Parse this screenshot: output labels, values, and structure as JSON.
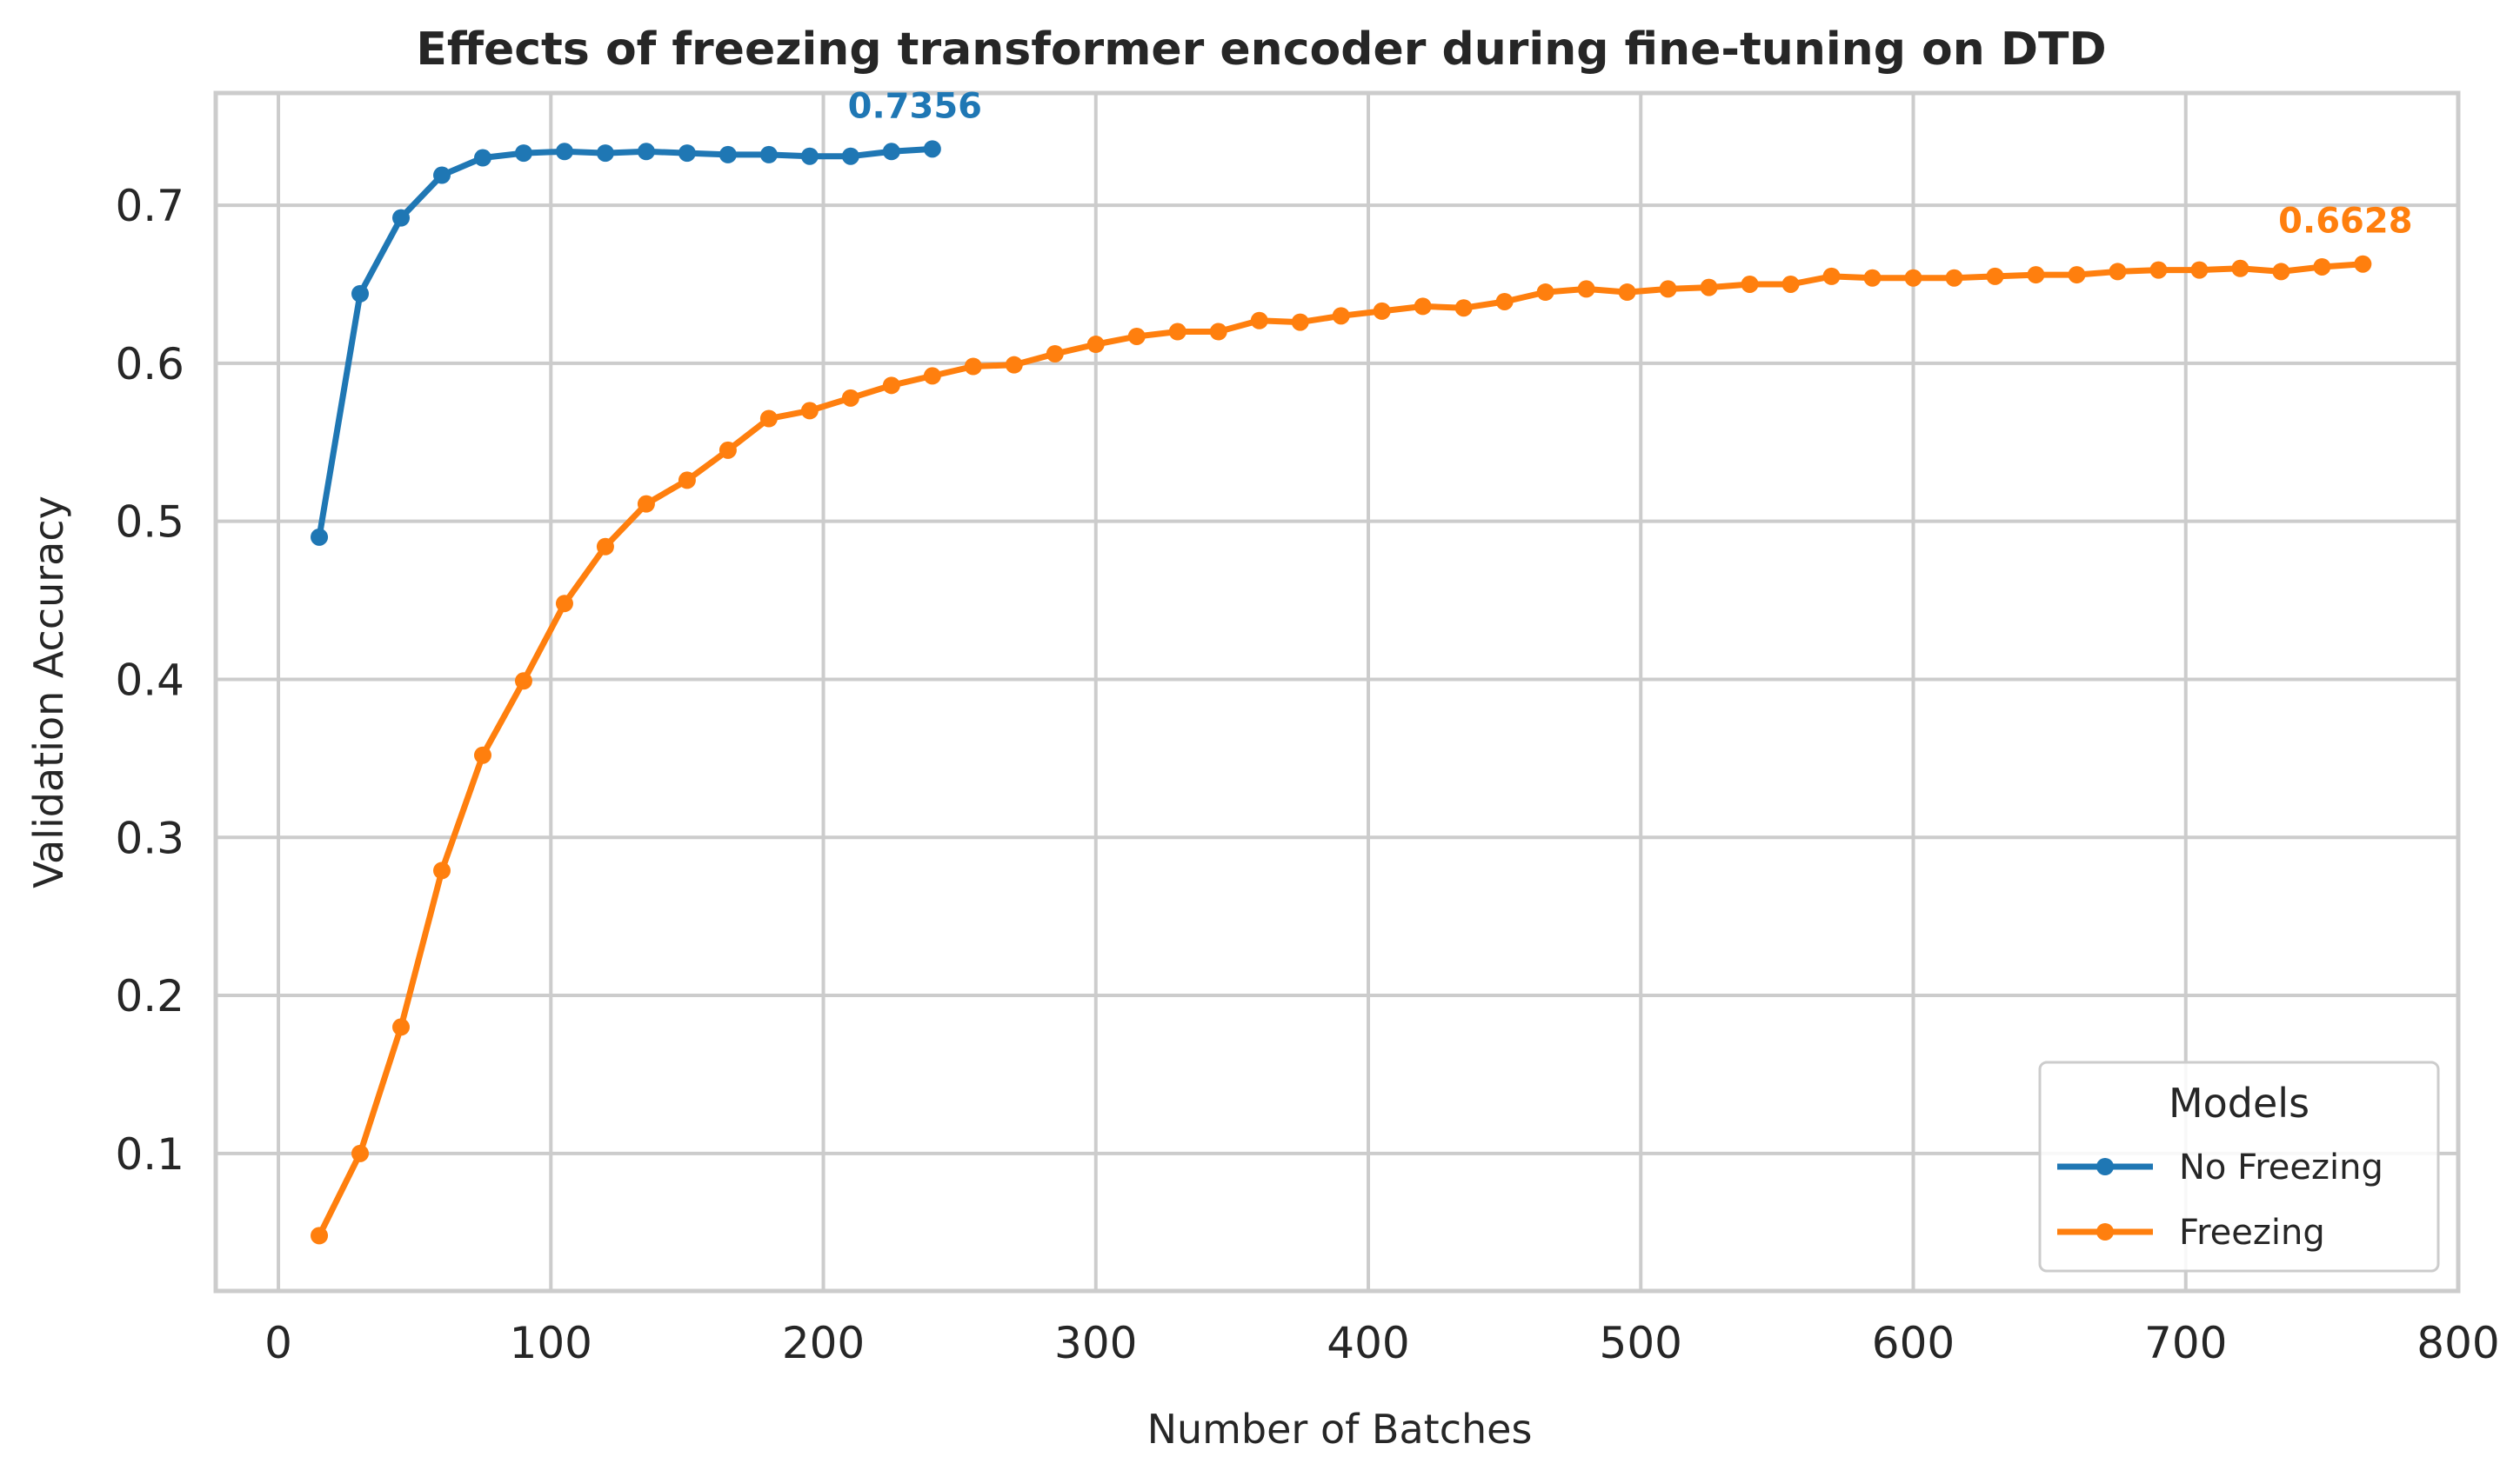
{
  "chart_data": {
    "type": "line",
    "title": "Effects of freezing transformer encoder during fine-tuning on DTD",
    "xlabel": "Number of Batches",
    "ylabel": "Validation Accuracy",
    "xlim": [
      -23,
      800
    ],
    "ylim": [
      0.013,
      0.771
    ],
    "xticks": [
      0,
      100,
      200,
      300,
      400,
      500,
      600,
      700,
      800
    ],
    "yticks": [
      0.1,
      0.2,
      0.3,
      0.4,
      0.5,
      0.6,
      0.7
    ],
    "grid": true,
    "legend": {
      "title": "Models",
      "placement": "lower-right"
    },
    "series": [
      {
        "name": "No Freezing",
        "color": "#1f77b4",
        "x": [
          15,
          30,
          45,
          60,
          75,
          90,
          105,
          120,
          135,
          150,
          165,
          180,
          195,
          210,
          225,
          240
        ],
        "y": [
          0.49,
          0.644,
          0.692,
          0.719,
          0.73,
          0.733,
          0.734,
          0.733,
          0.734,
          0.733,
          0.732,
          0.732,
          0.731,
          0.731,
          0.734,
          0.7356
        ],
        "annotation": "0.7356"
      },
      {
        "name": "Freezing",
        "color": "#ff7f0e",
        "x": [
          15,
          30,
          45,
          60,
          75,
          90,
          105,
          120,
          135,
          150,
          165,
          180,
          195,
          210,
          225,
          240,
          255,
          270,
          285,
          300,
          315,
          330,
          345,
          360,
          375,
          390,
          405,
          420,
          435,
          450,
          465,
          480,
          495,
          510,
          525,
          540,
          555,
          570,
          585,
          600,
          615,
          630,
          645,
          660,
          675,
          690,
          705,
          720,
          735,
          750,
          765
        ],
        "y": [
          0.048,
          0.1,
          0.18,
          0.279,
          0.352,
          0.399,
          0.448,
          0.484,
          0.511,
          0.526,
          0.545,
          0.565,
          0.57,
          0.578,
          0.586,
          0.592,
          0.598,
          0.599,
          0.606,
          0.612,
          0.617,
          0.62,
          0.62,
          0.627,
          0.626,
          0.63,
          0.633,
          0.636,
          0.635,
          0.639,
          0.645,
          0.647,
          0.645,
          0.647,
          0.648,
          0.65,
          0.65,
          0.655,
          0.654,
          0.654,
          0.654,
          0.655,
          0.656,
          0.656,
          0.658,
          0.659,
          0.659,
          0.66,
          0.658,
          0.661,
          0.6628
        ],
        "annotation": "0.6628"
      }
    ]
  }
}
